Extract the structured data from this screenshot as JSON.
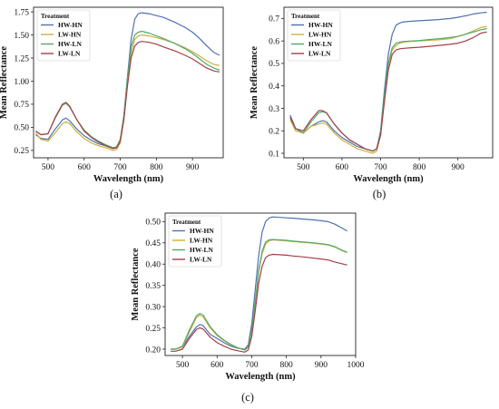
{
  "chart_data": [
    {
      "type": "line",
      "panel_label": "(a)",
      "xlabel": "Wavelength (nm)",
      "ylabel": "Mean Reflectance",
      "xlim": [
        460,
        985
      ],
      "ylim": [
        0.17,
        1.8
      ],
      "xticks": [
        500,
        600,
        700,
        800,
        900
      ],
      "yticks": [
        0.25,
        0.5,
        0.75,
        1.0,
        1.25,
        1.5,
        1.75
      ],
      "ytick_labels": [
        "0.25",
        "0.50",
        "0.75",
        "1.00",
        "1.25",
        "1.50",
        "1.75"
      ],
      "grid": false,
      "legend": {
        "title": "Treatment",
        "placement": "top-left"
      },
      "x": [
        466,
        480,
        500,
        520,
        540,
        550,
        560,
        580,
        600,
        620,
        640,
        660,
        680,
        690,
        700,
        710,
        720,
        730,
        740,
        750,
        760,
        780,
        800,
        820,
        850,
        880,
        900,
        920,
        940,
        960,
        975
      ],
      "series": [
        {
          "name": "HW-HN",
          "color": "#4c72b0",
          "values": [
            0.42,
            0.38,
            0.37,
            0.48,
            0.58,
            0.6,
            0.57,
            0.48,
            0.41,
            0.36,
            0.32,
            0.3,
            0.27,
            0.28,
            0.36,
            0.62,
            1.05,
            1.45,
            1.67,
            1.73,
            1.74,
            1.73,
            1.71,
            1.69,
            1.64,
            1.58,
            1.53,
            1.46,
            1.38,
            1.31,
            1.28
          ]
        },
        {
          "name": "LW-HN",
          "color": "#ccb03c",
          "values": [
            0.44,
            0.37,
            0.35,
            0.44,
            0.54,
            0.56,
            0.54,
            0.45,
            0.38,
            0.33,
            0.3,
            0.28,
            0.25,
            0.26,
            0.33,
            0.58,
            0.97,
            1.3,
            1.45,
            1.49,
            1.5,
            1.49,
            1.47,
            1.45,
            1.41,
            1.36,
            1.32,
            1.27,
            1.22,
            1.18,
            1.17
          ]
        },
        {
          "name": "HW-LN",
          "color": "#55a868",
          "values": [
            0.46,
            0.42,
            0.43,
            0.6,
            0.74,
            0.76,
            0.72,
            0.58,
            0.47,
            0.4,
            0.35,
            0.31,
            0.28,
            0.29,
            0.37,
            0.62,
            1.03,
            1.37,
            1.5,
            1.53,
            1.54,
            1.52,
            1.49,
            1.46,
            1.41,
            1.35,
            1.3,
            1.24,
            1.18,
            1.14,
            1.12
          ]
        },
        {
          "name": "LW-LN",
          "color": "#a2404a",
          "values": [
            0.46,
            0.42,
            0.43,
            0.61,
            0.75,
            0.77,
            0.73,
            0.58,
            0.46,
            0.39,
            0.34,
            0.3,
            0.27,
            0.28,
            0.35,
            0.58,
            0.95,
            1.25,
            1.38,
            1.42,
            1.43,
            1.42,
            1.4,
            1.37,
            1.33,
            1.28,
            1.24,
            1.19,
            1.14,
            1.11,
            1.1
          ]
        }
      ]
    },
    {
      "type": "line",
      "panel_label": "(b)",
      "xlabel": "Wavelength (nm)",
      "ylabel": "Mean Reflectance",
      "xlim": [
        450,
        990
      ],
      "ylim": [
        0.08,
        0.75
      ],
      "xticks": [
        500,
        600,
        700,
        800,
        900
      ],
      "yticks": [
        0.1,
        0.2,
        0.3,
        0.4,
        0.5,
        0.6,
        0.7
      ],
      "ytick_labels": [
        "0.1",
        "0.2",
        "0.3",
        "0.4",
        "0.5",
        "0.6",
        "0.7"
      ],
      "grid": false,
      "legend": {
        "title": "Treatment",
        "placement": "top-left"
      },
      "x": [
        466,
        480,
        500,
        520,
        540,
        550,
        560,
        580,
        600,
        620,
        640,
        660,
        680,
        690,
        700,
        710,
        720,
        730,
        740,
        750,
        760,
        780,
        800,
        820,
        850,
        880,
        900,
        920,
        940,
        960,
        975
      ],
      "series": [
        {
          "name": "HW-HN",
          "color": "#4c72b0",
          "values": [
            0.27,
            0.21,
            0.19,
            0.22,
            0.24,
            0.245,
            0.24,
            0.2,
            0.17,
            0.15,
            0.13,
            0.12,
            0.11,
            0.12,
            0.2,
            0.38,
            0.54,
            0.63,
            0.67,
            0.68,
            0.685,
            0.688,
            0.69,
            0.692,
            0.695,
            0.7,
            0.705,
            0.712,
            0.72,
            0.725,
            0.728
          ]
        },
        {
          "name": "LW-HN",
          "color": "#ccb03c",
          "values": [
            0.25,
            0.2,
            0.19,
            0.22,
            0.23,
            0.235,
            0.23,
            0.19,
            0.16,
            0.14,
            0.12,
            0.11,
            0.1,
            0.11,
            0.18,
            0.34,
            0.49,
            0.56,
            0.58,
            0.59,
            0.595,
            0.598,
            0.6,
            0.602,
            0.605,
            0.61,
            0.62,
            0.63,
            0.645,
            0.66,
            0.665
          ]
        },
        {
          "name": "HW-LN",
          "color": "#55a868",
          "values": [
            0.26,
            0.21,
            0.19,
            0.24,
            0.28,
            0.285,
            0.28,
            0.23,
            0.19,
            0.16,
            0.14,
            0.12,
            0.11,
            0.12,
            0.19,
            0.36,
            0.5,
            0.57,
            0.59,
            0.595,
            0.598,
            0.6,
            0.602,
            0.605,
            0.61,
            0.615,
            0.62,
            0.63,
            0.64,
            0.65,
            0.655
          ]
        },
        {
          "name": "LW-LN",
          "color": "#a2404a",
          "values": [
            0.26,
            0.21,
            0.2,
            0.25,
            0.29,
            0.29,
            0.28,
            0.23,
            0.19,
            0.16,
            0.14,
            0.12,
            0.11,
            0.12,
            0.18,
            0.33,
            0.47,
            0.54,
            0.56,
            0.565,
            0.567,
            0.57,
            0.572,
            0.575,
            0.58,
            0.585,
            0.59,
            0.6,
            0.615,
            0.635,
            0.64
          ]
        }
      ]
    },
    {
      "type": "line",
      "panel_label": "(c)",
      "xlabel": "Wavelength (nm)",
      "ylabel": "Mean Reflectance",
      "xlim": [
        450,
        1000
      ],
      "ylim": [
        0.185,
        0.52
      ],
      "xticks": [
        500,
        600,
        700,
        800,
        900,
        1000
      ],
      "yticks": [
        0.2,
        0.25,
        0.3,
        0.35,
        0.4,
        0.45,
        0.5
      ],
      "ytick_labels": [
        "0.20",
        "0.25",
        "0.30",
        "0.35",
        "0.40",
        "0.45",
        "0.50"
      ],
      "grid": false,
      "legend": {
        "title": "Treatment",
        "placement": "top-left"
      },
      "x": [
        466,
        480,
        500,
        520,
        540,
        550,
        560,
        580,
        600,
        620,
        640,
        660,
        680,
        690,
        700,
        710,
        720,
        730,
        740,
        750,
        760,
        780,
        800,
        820,
        850,
        880,
        900,
        920,
        940,
        960,
        975
      ],
      "series": [
        {
          "name": "HW-HN",
          "color": "#4c72b0",
          "values": [
            0.2,
            0.2,
            0.205,
            0.23,
            0.252,
            0.258,
            0.255,
            0.235,
            0.225,
            0.215,
            0.207,
            0.202,
            0.2,
            0.21,
            0.26,
            0.34,
            0.42,
            0.475,
            0.5,
            0.508,
            0.511,
            0.51,
            0.509,
            0.508,
            0.506,
            0.504,
            0.502,
            0.5,
            0.494,
            0.485,
            0.478
          ]
        },
        {
          "name": "LW-HN",
          "color": "#ccb03c",
          "values": [
            0.2,
            0.2,
            0.205,
            0.24,
            0.274,
            0.28,
            0.276,
            0.25,
            0.232,
            0.22,
            0.21,
            0.203,
            0.198,
            0.205,
            0.245,
            0.31,
            0.38,
            0.425,
            0.447,
            0.455,
            0.457,
            0.456,
            0.455,
            0.453,
            0.451,
            0.449,
            0.447,
            0.445,
            0.44,
            0.432,
            0.427
          ]
        },
        {
          "name": "HW-LN",
          "color": "#55a868",
          "values": [
            0.2,
            0.2,
            0.207,
            0.245,
            0.278,
            0.284,
            0.28,
            0.253,
            0.234,
            0.221,
            0.211,
            0.203,
            0.198,
            0.205,
            0.245,
            0.31,
            0.385,
            0.43,
            0.452,
            0.457,
            0.458,
            0.457,
            0.456,
            0.454,
            0.452,
            0.45,
            0.448,
            0.446,
            0.441,
            0.433,
            0.428
          ]
        },
        {
          "name": "LW-LN",
          "color": "#a2404a",
          "values": [
            0.195,
            0.195,
            0.2,
            0.225,
            0.246,
            0.25,
            0.247,
            0.228,
            0.215,
            0.207,
            0.2,
            0.196,
            0.193,
            0.198,
            0.23,
            0.29,
            0.355,
            0.395,
            0.415,
            0.421,
            0.423,
            0.422,
            0.421,
            0.419,
            0.417,
            0.414,
            0.412,
            0.41,
            0.405,
            0.401,
            0.398
          ]
        }
      ]
    }
  ]
}
